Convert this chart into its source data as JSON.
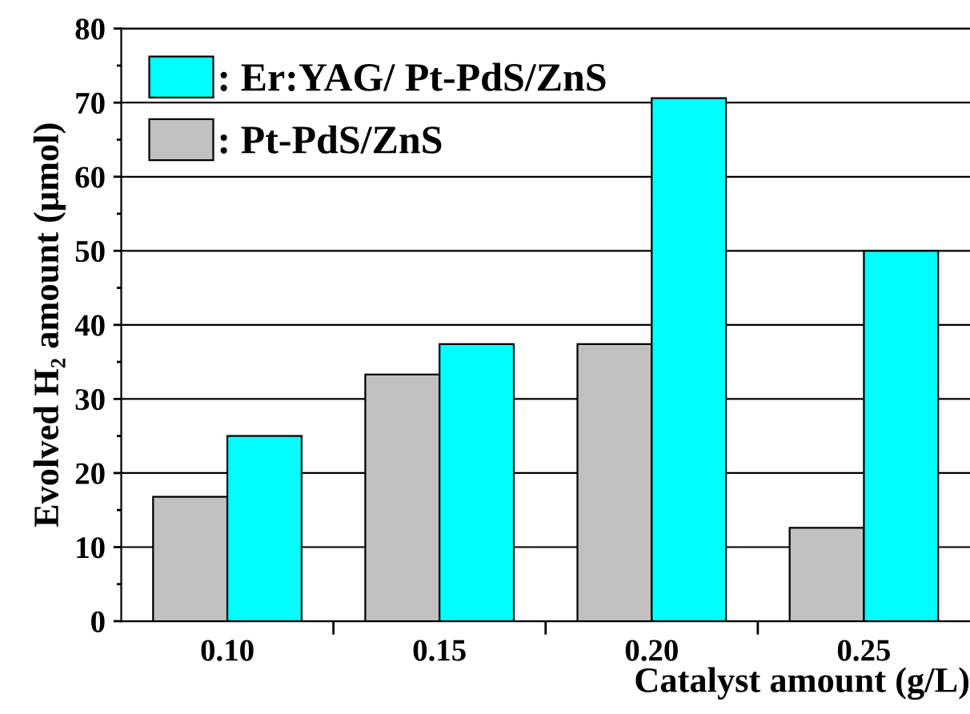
{
  "chart_data": {
    "type": "bar",
    "xlabel": "Catalyst amount (g/L)",
    "ylabel": "Evolved H₂ amount (μmol)",
    "categories": [
      "0.10",
      "0.15",
      "0.20",
      "0.25"
    ],
    "series": [
      {
        "name": ": Pt-PdS/ZnS",
        "color": "#c0c0c0",
        "values": [
          16.8,
          33.3,
          37.4,
          12.6
        ]
      },
      {
        "name": ": Er:YAG/ Pt-PdS/ZnS",
        "color": "#00ffff",
        "values": [
          25.0,
          37.4,
          70.6,
          50.0
        ]
      }
    ],
    "ylim": [
      0,
      80
    ],
    "yticks": [
      0,
      10,
      20,
      30,
      40,
      50,
      60,
      70,
      80
    ],
    "grid": "y",
    "legend": "top left"
  }
}
